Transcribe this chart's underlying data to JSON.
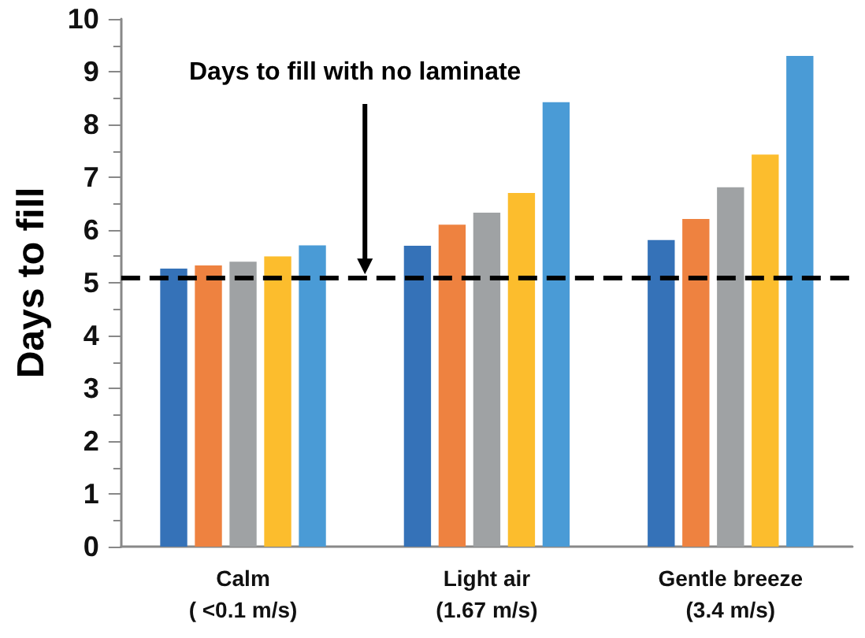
{
  "chart_data": {
    "type": "bar",
    "ylabel": "Days to fill",
    "categories": [
      "Calm\n( <0.1 m/s)",
      "Light air\n(1.67 m/s)",
      "Gentle breeze\n(3.4 m/s)"
    ],
    "series": [
      {
        "color": "#3572b8",
        "values": [
          5.27,
          5.7,
          5.81
        ]
      },
      {
        "color": "#ee8240",
        "values": [
          5.33,
          6.1,
          6.21
        ]
      },
      {
        "color": "#9fa2a4",
        "values": [
          5.4,
          6.33,
          6.81
        ]
      },
      {
        "color": "#fcbd2d",
        "values": [
          5.5,
          6.7,
          7.43
        ]
      },
      {
        "color": "#4a9bd6",
        "values": [
          5.71,
          8.42,
          9.3
        ]
      }
    ],
    "ylim": [
      0,
      10
    ],
    "yticks": [
      0,
      1,
      2,
      3,
      4,
      5,
      6,
      7,
      8,
      9,
      10
    ],
    "grid": false,
    "ref_lines": [
      {
        "axis": "y",
        "value": 5.1,
        "label": "Days to fill with no laminate",
        "color": "#000000",
        "line_style": "dashed"
      }
    ]
  }
}
